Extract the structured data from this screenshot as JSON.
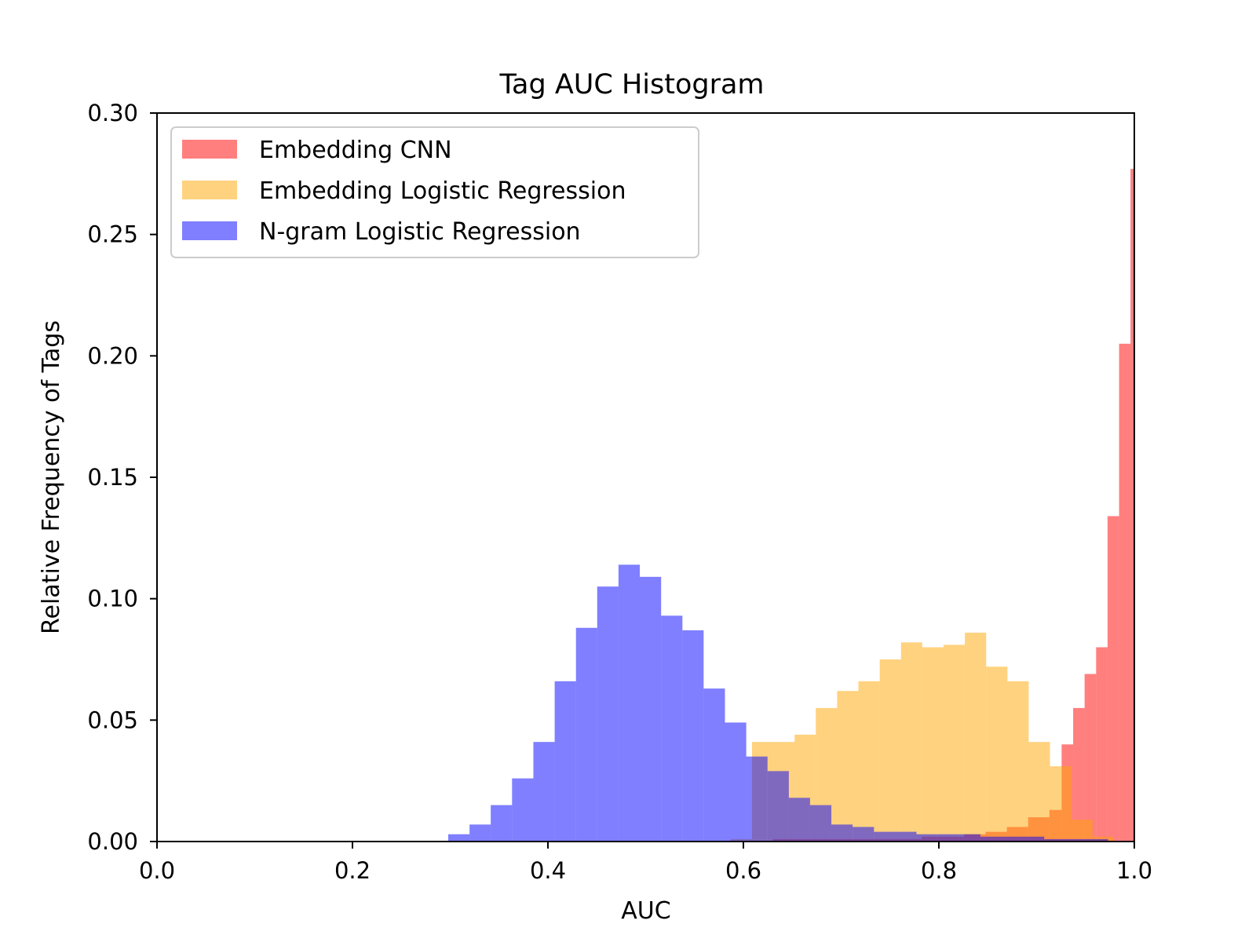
{
  "chart_data": {
    "type": "histogram",
    "title": "Tag AUC Histogram",
    "xlabel": "AUC",
    "ylabel": "Relative Frequency of Tags",
    "xlim": [
      0.0,
      1.0
    ],
    "ylim": [
      0.0,
      0.3
    ],
    "xticks": [
      "0.0",
      "0.2",
      "0.4",
      "0.6",
      "0.8",
      "1.0"
    ],
    "yticks": [
      "0.00",
      "0.05",
      "0.10",
      "0.15",
      "0.20",
      "0.25",
      "0.30"
    ],
    "grid": false,
    "legend_position": "top-left",
    "bin_width": 0.02178,
    "series": [
      {
        "name": "Embedding CNN",
        "color": "#ff0000",
        "alpha": 0.5,
        "bins": [
          {
            "x0": 0.63,
            "x1": 0.6518,
            "y": 0.001
          },
          {
            "x0": 0.6518,
            "x1": 0.6735,
            "y": 0.001
          },
          {
            "x0": 0.6735,
            "x1": 0.6953,
            "y": 0.001
          },
          {
            "x0": 0.6953,
            "x1": 0.7171,
            "y": 0.001
          },
          {
            "x0": 0.7171,
            "x1": 0.7389,
            "y": 0.001
          },
          {
            "x0": 0.7389,
            "x1": 0.7607,
            "y": 0.001
          },
          {
            "x0": 0.7607,
            "x1": 0.7825,
            "y": 0.001
          },
          {
            "x0": 0.7825,
            "x1": 0.8042,
            "y": 0.002
          },
          {
            "x0": 0.8042,
            "x1": 0.826,
            "y": 0.002
          },
          {
            "x0": 0.826,
            "x1": 0.8478,
            "y": 0.003
          },
          {
            "x0": 0.8478,
            "x1": 0.8696,
            "y": 0.004
          },
          {
            "x0": 0.8696,
            "x1": 0.8914,
            "y": 0.006
          },
          {
            "x0": 0.8914,
            "x1": 0.9131,
            "y": 0.01
          },
          {
            "x0": 0.9131,
            "x1": 0.9256,
            "y": 0.013
          },
          {
            "x0": 0.9256,
            "x1": 0.9374,
            "y": 0.04
          },
          {
            "x0": 0.9374,
            "x1": 0.9491,
            "y": 0.055
          },
          {
            "x0": 0.9491,
            "x1": 0.9609,
            "y": 0.069
          },
          {
            "x0": 0.9609,
            "x1": 0.9726,
            "y": 0.08
          },
          {
            "x0": 0.9726,
            "x1": 0.9844,
            "y": 0.134
          },
          {
            "x0": 0.9844,
            "x1": 0.9961,
            "y": 0.205
          },
          {
            "x0": 0.9961,
            "x1": 1.0079,
            "y": 0.277
          }
        ]
      },
      {
        "name": "Embedding Logistic Regression",
        "color": "#ffa500",
        "alpha": 0.5,
        "bins": [
          {
            "x0": 0.587,
            "x1": 0.6088,
            "y": 0.001
          },
          {
            "x0": 0.6088,
            "x1": 0.6306,
            "y": 0.041
          },
          {
            "x0": 0.6306,
            "x1": 0.6524,
            "y": 0.041
          },
          {
            "x0": 0.6524,
            "x1": 0.6741,
            "y": 0.044
          },
          {
            "x0": 0.6741,
            "x1": 0.6959,
            "y": 0.055
          },
          {
            "x0": 0.6959,
            "x1": 0.7177,
            "y": 0.062
          },
          {
            "x0": 0.7177,
            "x1": 0.7395,
            "y": 0.066
          },
          {
            "x0": 0.7395,
            "x1": 0.7613,
            "y": 0.075
          },
          {
            "x0": 0.7613,
            "x1": 0.783,
            "y": 0.082
          },
          {
            "x0": 0.783,
            "x1": 0.8048,
            "y": 0.08
          },
          {
            "x0": 0.8048,
            "x1": 0.8266,
            "y": 0.081
          },
          {
            "x0": 0.8266,
            "x1": 0.8484,
            "y": 0.086
          },
          {
            "x0": 0.8484,
            "x1": 0.8702,
            "y": 0.072
          },
          {
            "x0": 0.8702,
            "x1": 0.8919,
            "y": 0.066
          },
          {
            "x0": 0.8919,
            "x1": 0.9137,
            "y": 0.041
          },
          {
            "x0": 0.9137,
            "x1": 0.9355,
            "y": 0.031
          },
          {
            "x0": 0.9355,
            "x1": 0.9573,
            "y": 0.009
          },
          {
            "x0": 0.9573,
            "x1": 0.9791,
            "y": 0.002
          }
        ]
      },
      {
        "name": "N-gram Logistic Regression",
        "color": "#0000ff",
        "alpha": 0.5,
        "bins": [
          {
            "x0": 0.298,
            "x1": 0.3198,
            "y": 0.003
          },
          {
            "x0": 0.3198,
            "x1": 0.3415,
            "y": 0.007
          },
          {
            "x0": 0.3415,
            "x1": 0.3633,
            "y": 0.015
          },
          {
            "x0": 0.3633,
            "x1": 0.3851,
            "y": 0.026
          },
          {
            "x0": 0.3851,
            "x1": 0.4069,
            "y": 0.041
          },
          {
            "x0": 0.4069,
            "x1": 0.4287,
            "y": 0.066
          },
          {
            "x0": 0.4287,
            "x1": 0.4504,
            "y": 0.088
          },
          {
            "x0": 0.4504,
            "x1": 0.4722,
            "y": 0.105
          },
          {
            "x0": 0.4722,
            "x1": 0.494,
            "y": 0.114
          },
          {
            "x0": 0.494,
            "x1": 0.5158,
            "y": 0.109
          },
          {
            "x0": 0.5158,
            "x1": 0.5376,
            "y": 0.093
          },
          {
            "x0": 0.5376,
            "x1": 0.5593,
            "y": 0.087
          },
          {
            "x0": 0.5593,
            "x1": 0.5811,
            "y": 0.063
          },
          {
            "x0": 0.5811,
            "x1": 0.6029,
            "y": 0.049
          },
          {
            "x0": 0.6029,
            "x1": 0.6247,
            "y": 0.035
          },
          {
            "x0": 0.6247,
            "x1": 0.6465,
            "y": 0.029
          },
          {
            "x0": 0.6465,
            "x1": 0.6682,
            "y": 0.018
          },
          {
            "x0": 0.6682,
            "x1": 0.69,
            "y": 0.015
          },
          {
            "x0": 0.69,
            "x1": 0.7118,
            "y": 0.007
          },
          {
            "x0": 0.7118,
            "x1": 0.7336,
            "y": 0.006
          },
          {
            "x0": 0.7336,
            "x1": 0.7554,
            "y": 0.004
          },
          {
            "x0": 0.7554,
            "x1": 0.7771,
            "y": 0.004
          },
          {
            "x0": 0.7771,
            "x1": 0.7989,
            "y": 0.003
          },
          {
            "x0": 0.7989,
            "x1": 0.8207,
            "y": 0.003
          },
          {
            "x0": 0.8207,
            "x1": 0.8425,
            "y": 0.003
          },
          {
            "x0": 0.8425,
            "x1": 0.8643,
            "y": 0.002
          },
          {
            "x0": 0.8643,
            "x1": 0.886,
            "y": 0.002
          },
          {
            "x0": 0.886,
            "x1": 0.9078,
            "y": 0.002
          },
          {
            "x0": 0.9078,
            "x1": 0.9296,
            "y": 0.001
          },
          {
            "x0": 0.9296,
            "x1": 0.9514,
            "y": 0.001
          },
          {
            "x0": 0.9514,
            "x1": 0.9732,
            "y": 0.001
          }
        ]
      }
    ]
  }
}
